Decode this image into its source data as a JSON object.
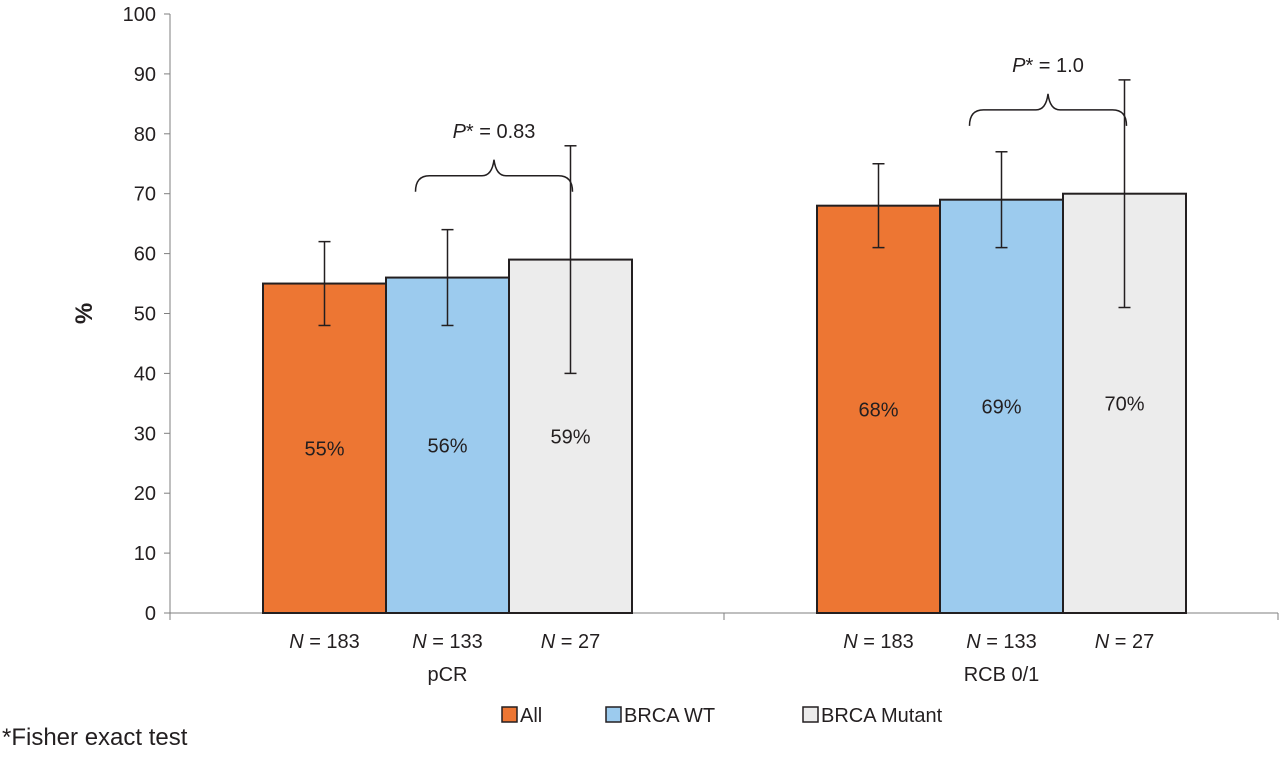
{
  "chart_data": {
    "type": "bar",
    "ylabel": "%",
    "ylim": [
      0,
      100
    ],
    "yticks": [
      0,
      10,
      20,
      30,
      40,
      50,
      60,
      70,
      80,
      90,
      100
    ],
    "groups": [
      {
        "label": "pCR",
        "n_labels": [
          "183",
          "133",
          "27"
        ],
        "p_value_label": "= 0.83",
        "bracket_series": [
          1,
          2
        ],
        "values": [
          55,
          56,
          59
        ],
        "value_labels": [
          "55%",
          "56%",
          "59%"
        ],
        "error_low": [
          48,
          48,
          40
        ],
        "error_high": [
          62,
          64,
          78
        ]
      },
      {
        "label": "RCB 0/1",
        "n_labels": [
          "183",
          "133",
          "27"
        ],
        "p_value_label": "= 1.0",
        "bracket_series": [
          1,
          2
        ],
        "values": [
          68,
          69,
          70
        ],
        "value_labels": [
          "68%",
          "69%",
          "70%"
        ],
        "error_low": [
          61,
          61,
          51
        ],
        "error_high": [
          75,
          77,
          89
        ]
      }
    ],
    "series": [
      {
        "name": "All",
        "color": "#ed7633"
      },
      {
        "name": "BRCA WT",
        "color": "#9ccbee"
      },
      {
        "name": "BRCA Mutant",
        "color": "#ececec"
      }
    ],
    "n_prefix": "N",
    "p_prefix": "P",
    "p_star": "*",
    "legend_position": "bottom"
  },
  "footnote": "*Fisher exact test"
}
